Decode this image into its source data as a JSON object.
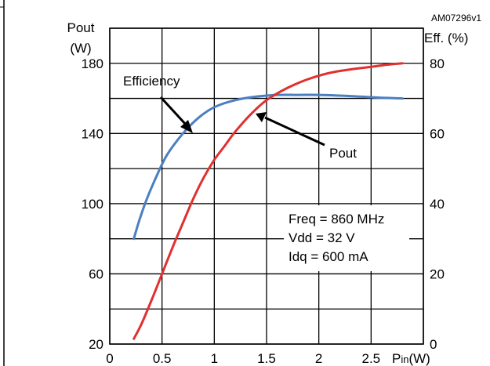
{
  "chart_data": {
    "type": "line",
    "figure_id": "AM07296v1",
    "x_axis": {
      "label_main": "P",
      "label_sub": "in",
      "label_unit": "(W)",
      "range": [
        0,
        3
      ],
      "ticks": [
        0,
        0.5,
        1,
        1.5,
        2,
        2.5
      ],
      "tick_labels": [
        "0",
        "0.5",
        "1",
        "1.5",
        "2",
        "2.5"
      ]
    },
    "y_left": {
      "label_line1": "Pout",
      "label_line2": "(W)",
      "range": [
        20,
        200
      ],
      "tick_values": [
        20,
        60,
        100,
        140,
        180
      ],
      "tick_labels": [
        "20",
        "60",
        "100",
        "140",
        "180"
      ]
    },
    "y_right": {
      "label": "Eff. (%)",
      "range": [
        0,
        90
      ],
      "tick_values": [
        0,
        20,
        40,
        60,
        80
      ],
      "tick_labels": [
        "0",
        "20",
        "40",
        "60",
        "80"
      ]
    },
    "grid": true,
    "series": [
      {
        "name": "Efficiency",
        "axis": "right",
        "color": "#4a7fc0",
        "x": [
          0.23,
          0.28,
          0.35,
          0.45,
          0.55,
          0.7,
          0.85,
          1.0,
          1.2,
          1.4,
          1.6,
          1.8,
          2.0,
          2.2,
          2.4,
          2.6,
          2.8
        ],
        "y": [
          30,
          35,
          41,
          48,
          54,
          60,
          64.5,
          67.5,
          69.5,
          70.5,
          71,
          71,
          71,
          70.8,
          70.5,
          70.2,
          70
        ]
      },
      {
        "name": "Pout",
        "axis": "left",
        "color": "#e03030",
        "x": [
          0.23,
          0.3,
          0.4,
          0.5,
          0.6,
          0.7,
          0.8,
          0.9,
          1.0,
          1.1,
          1.2,
          1.35,
          1.5,
          1.7,
          1.9,
          2.1,
          2.3,
          2.5,
          2.7,
          2.8
        ],
        "y": [
          23,
          31,
          45,
          60,
          75,
          89,
          103,
          115,
          125,
          133,
          141,
          151,
          159,
          166,
          171,
          174.5,
          176.5,
          178,
          179.5,
          180
        ]
      }
    ],
    "annotations": [
      {
        "text": "Efficiency"
      },
      {
        "text": "Pout"
      },
      {
        "text": "Freq = 860 MHz"
      },
      {
        "text": "Vdd = 32 V"
      },
      {
        "text": "Idq = 600 mA"
      }
    ]
  }
}
